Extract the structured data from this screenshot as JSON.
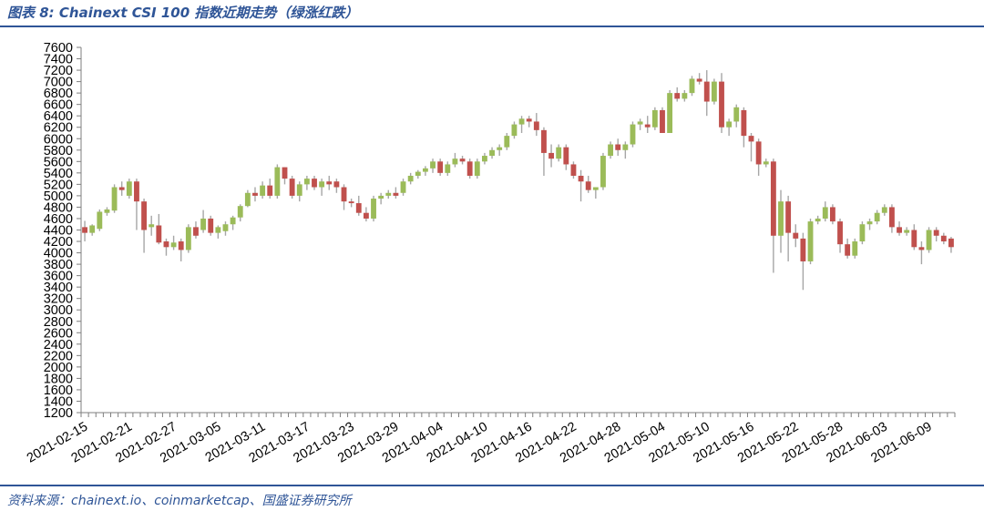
{
  "title": "图表 8:  Chainext CSI 100 指数近期走势（绿涨红跌）",
  "source": "资料来源：chainext.io、coinmarketcap、国盛证券研究所",
  "colors": {
    "up": "#9bbb59",
    "down": "#c0504d",
    "wick": "#a6a6a6",
    "axis": "#7f7f7f"
  },
  "chart_data": {
    "type": "candlestick",
    "title": "Chainext CSI 100 指数近期走势（绿涨红跌）",
    "xlabel": "",
    "ylabel": "",
    "ylim": [
      1200,
      7600
    ],
    "ytick_step": 200,
    "x_tick_labels": [
      "2021-02-15",
      "2021-02-21",
      "2021-02-27",
      "2021-03-05",
      "2021-03-11",
      "2021-03-17",
      "2021-03-23",
      "2021-03-29",
      "2021-04-04",
      "2021-04-10",
      "2021-04-16",
      "2021-04-22",
      "2021-04-28",
      "2021-05-04",
      "2021-05-10",
      "2021-05-16",
      "2021-05-22",
      "2021-05-28",
      "2021-06-03",
      "2021-06-09"
    ],
    "ohlc": [
      {
        "date": "2021-02-15",
        "open": 4450,
        "high": 4560,
        "low": 4200,
        "close": 4350
      },
      {
        "date": "2021-02-16",
        "open": 4350,
        "high": 4500,
        "low": 4300,
        "close": 4480
      },
      {
        "date": "2021-02-17",
        "open": 4420,
        "high": 4760,
        "low": 4380,
        "close": 4720
      },
      {
        "date": "2021-02-18",
        "open": 4700,
        "high": 4800,
        "low": 4650,
        "close": 4760
      },
      {
        "date": "2021-02-19",
        "open": 4740,
        "high": 5200,
        "low": 4700,
        "close": 5150
      },
      {
        "date": "2021-02-20",
        "open": 5150,
        "high": 5250,
        "low": 5000,
        "close": 5100
      },
      {
        "date": "2021-02-21",
        "open": 5000,
        "high": 5300,
        "low": 4950,
        "close": 5250
      },
      {
        "date": "2021-02-22",
        "open": 5250,
        "high": 5300,
        "low": 4400,
        "close": 4900
      },
      {
        "date": "2021-02-23",
        "open": 4900,
        "high": 4950,
        "low": 4000,
        "close": 4400
      },
      {
        "date": "2021-02-24",
        "open": 4450,
        "high": 4650,
        "low": 4300,
        "close": 4500
      },
      {
        "date": "2021-02-25",
        "open": 4480,
        "high": 4680,
        "low": 4150,
        "close": 4180
      },
      {
        "date": "2021-02-26",
        "open": 4200,
        "high": 4250,
        "low": 3950,
        "close": 4100
      },
      {
        "date": "2021-02-27",
        "open": 4100,
        "high": 4300,
        "low": 4050,
        "close": 4180
      },
      {
        "date": "2021-02-28",
        "open": 4200,
        "high": 4250,
        "low": 3850,
        "close": 4050
      },
      {
        "date": "2021-03-01",
        "open": 4050,
        "high": 4500,
        "low": 4000,
        "close": 4450
      },
      {
        "date": "2021-03-02",
        "open": 4450,
        "high": 4550,
        "low": 4250,
        "close": 4300
      },
      {
        "date": "2021-03-03",
        "open": 4400,
        "high": 4750,
        "low": 4350,
        "close": 4600
      },
      {
        "date": "2021-03-04",
        "open": 4600,
        "high": 4650,
        "low": 4300,
        "close": 4350
      },
      {
        "date": "2021-03-05",
        "open": 4350,
        "high": 4480,
        "low": 4250,
        "close": 4450
      },
      {
        "date": "2021-03-06",
        "open": 4380,
        "high": 4550,
        "low": 4300,
        "close": 4500
      },
      {
        "date": "2021-03-07",
        "open": 4500,
        "high": 4650,
        "low": 4400,
        "close": 4620
      },
      {
        "date": "2021-03-08",
        "open": 4620,
        "high": 4850,
        "low": 4550,
        "close": 4820
      },
      {
        "date": "2021-03-09",
        "open": 4820,
        "high": 5100,
        "low": 4800,
        "close": 5050
      },
      {
        "date": "2021-03-10",
        "open": 5050,
        "high": 5150,
        "low": 4900,
        "close": 5000
      },
      {
        "date": "2021-03-11",
        "open": 5000,
        "high": 5250,
        "low": 4950,
        "close": 5180
      },
      {
        "date": "2021-03-12",
        "open": 5180,
        "high": 5300,
        "low": 4950,
        "close": 5000
      },
      {
        "date": "2021-03-13",
        "open": 5000,
        "high": 5550,
        "low": 4950,
        "close": 5500
      },
      {
        "date": "2021-03-14",
        "open": 5500,
        "high": 5500,
        "low": 5200,
        "close": 5300
      },
      {
        "date": "2021-03-15",
        "open": 5300,
        "high": 5350,
        "low": 4950,
        "close": 5000
      },
      {
        "date": "2021-03-16",
        "open": 5000,
        "high": 5250,
        "low": 4900,
        "close": 5200
      },
      {
        "date": "2021-03-17",
        "open": 5200,
        "high": 5350,
        "low": 5100,
        "close": 5300
      },
      {
        "date": "2021-03-18",
        "open": 5300,
        "high": 5350,
        "low": 5100,
        "close": 5150
      },
      {
        "date": "2021-03-19",
        "open": 5150,
        "high": 5300,
        "low": 5000,
        "close": 5250
      },
      {
        "date": "2021-03-20",
        "open": 5250,
        "high": 5350,
        "low": 5100,
        "close": 5200
      },
      {
        "date": "2021-03-21",
        "open": 5250,
        "high": 5300,
        "low": 5050,
        "close": 5150
      },
      {
        "date": "2021-03-22",
        "open": 5150,
        "high": 5200,
        "low": 4750,
        "close": 4900
      },
      {
        "date": "2021-03-23",
        "open": 4900,
        "high": 4950,
        "low": 4800,
        "close": 4870
      },
      {
        "date": "2021-03-24",
        "open": 4870,
        "high": 5000,
        "low": 4650,
        "close": 4700
      },
      {
        "date": "2021-03-25",
        "open": 4700,
        "high": 4800,
        "low": 4550,
        "close": 4600
      },
      {
        "date": "2021-03-26",
        "open": 4600,
        "high": 5000,
        "low": 4550,
        "close": 4950
      },
      {
        "date": "2021-03-27",
        "open": 4950,
        "high": 5050,
        "low": 4850,
        "close": 5000
      },
      {
        "date": "2021-03-28",
        "open": 5000,
        "high": 5100,
        "low": 4950,
        "close": 5050
      },
      {
        "date": "2021-03-29",
        "open": 5050,
        "high": 5150,
        "low": 4950,
        "close": 5000
      },
      {
        "date": "2021-03-30",
        "open": 5050,
        "high": 5300,
        "low": 5000,
        "close": 5250
      },
      {
        "date": "2021-03-31",
        "open": 5250,
        "high": 5400,
        "low": 5200,
        "close": 5350
      },
      {
        "date": "2021-04-01",
        "open": 5350,
        "high": 5450,
        "low": 5300,
        "close": 5420
      },
      {
        "date": "2021-04-02",
        "open": 5420,
        "high": 5520,
        "low": 5350,
        "close": 5480
      },
      {
        "date": "2021-04-03",
        "open": 5480,
        "high": 5650,
        "low": 5400,
        "close": 5600
      },
      {
        "date": "2021-04-04",
        "open": 5600,
        "high": 5650,
        "low": 5350,
        "close": 5400
      },
      {
        "date": "2021-04-05",
        "open": 5400,
        "high": 5600,
        "low": 5350,
        "close": 5550
      },
      {
        "date": "2021-04-06",
        "open": 5550,
        "high": 5750,
        "low": 5500,
        "close": 5650
      },
      {
        "date": "2021-04-07",
        "open": 5650,
        "high": 5700,
        "low": 5550,
        "close": 5600
      },
      {
        "date": "2021-04-08",
        "open": 5600,
        "high": 5650,
        "low": 5300,
        "close": 5350
      },
      {
        "date": "2021-04-09",
        "open": 5350,
        "high": 5650,
        "low": 5300,
        "close": 5600
      },
      {
        "date": "2021-04-10",
        "open": 5600,
        "high": 5750,
        "low": 5550,
        "close": 5700
      },
      {
        "date": "2021-04-11",
        "open": 5700,
        "high": 5850,
        "low": 5650,
        "close": 5800
      },
      {
        "date": "2021-04-12",
        "open": 5800,
        "high": 5900,
        "low": 5700,
        "close": 5850
      },
      {
        "date": "2021-04-13",
        "open": 5850,
        "high": 6100,
        "low": 5800,
        "close": 6050
      },
      {
        "date": "2021-04-14",
        "open": 6050,
        "high": 6300,
        "low": 6000,
        "close": 6250
      },
      {
        "date": "2021-04-15",
        "open": 6250,
        "high": 6400,
        "low": 6100,
        "close": 6350
      },
      {
        "date": "2021-04-16",
        "open": 6350,
        "high": 6400,
        "low": 6200,
        "close": 6300
      },
      {
        "date": "2021-04-17",
        "open": 6300,
        "high": 6450,
        "low": 6050,
        "close": 6150
      },
      {
        "date": "2021-04-18",
        "open": 6150,
        "high": 6200,
        "low": 5350,
        "close": 5750
      },
      {
        "date": "2021-04-19",
        "open": 5750,
        "high": 5900,
        "low": 5500,
        "close": 5650
      },
      {
        "date": "2021-04-20",
        "open": 5650,
        "high": 5900,
        "low": 5600,
        "close": 5850
      },
      {
        "date": "2021-04-21",
        "open": 5850,
        "high": 5900,
        "low": 5450,
        "close": 5550
      },
      {
        "date": "2021-04-22",
        "open": 5550,
        "high": 5600,
        "low": 5300,
        "close": 5350
      },
      {
        "date": "2021-04-23",
        "open": 5350,
        "high": 5450,
        "low": 4900,
        "close": 5250
      },
      {
        "date": "2021-04-24",
        "open": 5250,
        "high": 5350,
        "low": 5050,
        "close": 5100
      },
      {
        "date": "2021-04-25",
        "open": 5100,
        "high": 5150,
        "low": 4950,
        "close": 5150
      },
      {
        "date": "2021-04-26",
        "open": 5150,
        "high": 5750,
        "low": 5100,
        "close": 5700
      },
      {
        "date": "2021-04-27",
        "open": 5700,
        "high": 5950,
        "low": 5650,
        "close": 5900
      },
      {
        "date": "2021-04-28",
        "open": 5900,
        "high": 6000,
        "low": 5700,
        "close": 5800
      },
      {
        "date": "2021-04-29",
        "open": 5800,
        "high": 5950,
        "low": 5650,
        "close": 5900
      },
      {
        "date": "2021-04-30",
        "open": 5900,
        "high": 6300,
        "low": 5850,
        "close": 6250
      },
      {
        "date": "2021-05-01",
        "open": 6250,
        "high": 6350,
        "low": 6150,
        "close": 6300
      },
      {
        "date": "2021-05-02",
        "open": 6250,
        "high": 6400,
        "low": 6100,
        "close": 6200
      },
      {
        "date": "2021-05-03",
        "open": 6200,
        "high": 6550,
        "low": 6150,
        "close": 6500
      },
      {
        "date": "2021-05-04",
        "open": 6500,
        "high": 6550,
        "low": 6100,
        "close": 6100
      },
      {
        "date": "2021-05-05",
        "open": 6100,
        "high": 6850,
        "low": 6100,
        "close": 6800
      },
      {
        "date": "2021-05-06",
        "open": 6800,
        "high": 6900,
        "low": 6650,
        "close": 6700
      },
      {
        "date": "2021-05-07",
        "open": 6700,
        "high": 6850,
        "low": 6650,
        "close": 6800
      },
      {
        "date": "2021-05-08",
        "open": 6800,
        "high": 7100,
        "low": 6750,
        "close": 7050
      },
      {
        "date": "2021-05-09",
        "open": 7050,
        "high": 7150,
        "low": 6950,
        "close": 7000
      },
      {
        "date": "2021-05-10",
        "open": 7000,
        "high": 7200,
        "low": 6400,
        "close": 6650
      },
      {
        "date": "2021-05-11",
        "open": 6650,
        "high": 7050,
        "low": 6600,
        "close": 7000
      },
      {
        "date": "2021-05-12",
        "open": 7000,
        "high": 7150,
        "low": 6100,
        "close": 6200
      },
      {
        "date": "2021-05-13",
        "open": 6200,
        "high": 6350,
        "low": 6050,
        "close": 6300
      },
      {
        "date": "2021-05-14",
        "open": 6300,
        "high": 6600,
        "low": 6200,
        "close": 6550
      },
      {
        "date": "2021-05-15",
        "open": 6500,
        "high": 6550,
        "low": 5850,
        "close": 6050
      },
      {
        "date": "2021-05-16",
        "open": 6050,
        "high": 6100,
        "low": 5600,
        "close": 5950
      },
      {
        "date": "2021-05-17",
        "open": 5950,
        "high": 6000,
        "low": 5350,
        "close": 5550
      },
      {
        "date": "2021-05-18",
        "open": 5550,
        "high": 5650,
        "low": 5500,
        "close": 5600
      },
      {
        "date": "2021-05-19",
        "open": 5600,
        "high": 5650,
        "low": 3650,
        "close": 4300
      },
      {
        "date": "2021-05-20",
        "open": 4300,
        "high": 5100,
        "low": 4000,
        "close": 4900
      },
      {
        "date": "2021-05-21",
        "open": 4900,
        "high": 5000,
        "low": 3850,
        "close": 4350
      },
      {
        "date": "2021-05-22",
        "open": 4350,
        "high": 4500,
        "low": 4100,
        "close": 4250
      },
      {
        "date": "2021-05-23",
        "open": 4250,
        "high": 4350,
        "low": 3350,
        "close": 3850
      },
      {
        "date": "2021-05-24",
        "open": 3850,
        "high": 4600,
        "low": 3800,
        "close": 4550
      },
      {
        "date": "2021-05-25",
        "open": 4550,
        "high": 4650,
        "low": 4500,
        "close": 4600
      },
      {
        "date": "2021-05-26",
        "open": 4600,
        "high": 4900,
        "low": 4550,
        "close": 4800
      },
      {
        "date": "2021-05-27",
        "open": 4800,
        "high": 4850,
        "low": 4500,
        "close": 4550
      },
      {
        "date": "2021-05-28",
        "open": 4550,
        "high": 4600,
        "low": 4000,
        "close": 4150
      },
      {
        "date": "2021-05-29",
        "open": 4150,
        "high": 4250,
        "low": 3900,
        "close": 3950
      },
      {
        "date": "2021-05-30",
        "open": 3950,
        "high": 4250,
        "low": 3900,
        "close": 4200
      },
      {
        "date": "2021-05-31",
        "open": 4200,
        "high": 4550,
        "low": 4150,
        "close": 4500
      },
      {
        "date": "2021-06-01",
        "open": 4500,
        "high": 4600,
        "low": 4400,
        "close": 4550
      },
      {
        "date": "2021-06-02",
        "open": 4550,
        "high": 4750,
        "low": 4500,
        "close": 4700
      },
      {
        "date": "2021-06-03",
        "open": 4700,
        "high": 4850,
        "low": 4650,
        "close": 4800
      },
      {
        "date": "2021-06-04",
        "open": 4800,
        "high": 4850,
        "low": 4350,
        "close": 4450
      },
      {
        "date": "2021-06-05",
        "open": 4450,
        "high": 4550,
        "low": 4300,
        "close": 4350
      },
      {
        "date": "2021-06-06",
        "open": 4350,
        "high": 4450,
        "low": 4300,
        "close": 4400
      },
      {
        "date": "2021-06-07",
        "open": 4400,
        "high": 4500,
        "low": 4050,
        "close": 4100
      },
      {
        "date": "2021-06-08",
        "open": 4100,
        "high": 4200,
        "low": 3800,
        "close": 4050
      },
      {
        "date": "2021-06-09",
        "open": 4050,
        "high": 4450,
        "low": 4000,
        "close": 4400
      },
      {
        "date": "2021-06-10",
        "open": 4400,
        "high": 4450,
        "low": 4200,
        "close": 4300
      },
      {
        "date": "2021-06-11",
        "open": 4300,
        "high": 4350,
        "low": 4150,
        "close": 4200
      },
      {
        "date": "2021-06-12",
        "open": 4250,
        "high": 4280,
        "low": 4000,
        "close": 4100
      }
    ]
  }
}
